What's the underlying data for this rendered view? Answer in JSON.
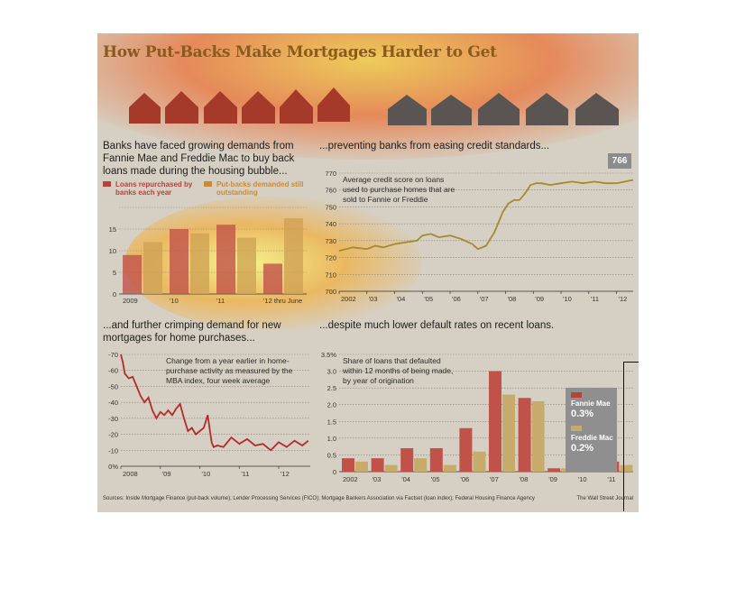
{
  "title": "How Put-Backs Make Mortgages Harder to Get",
  "panel1": {
    "title": "Banks have faced growing demands from Fannie Mae and Freddie Mac to buy back loans made during the housing bubble...",
    "legend_a": "Loans repurchased by banks each year",
    "legend_b": "Put-backs demanded still outstanding",
    "ytop": "$20 billion"
  },
  "panel2": {
    "title": "...preventing banks from easing credit standards...",
    "note": "Average credit score on loans used to purchase homes that are sold to Fannie or Freddie",
    "callout": "766"
  },
  "panel3": {
    "title": "...and further crimping demand for new mortgages for home purchases...",
    "note": "Change from a year earlier in home-purchase activity as measured by the MBA index, four week average"
  },
  "panel4": {
    "title": "...despite much lower default rates on recent loans.",
    "note": "Share of loans that defaulted within 12 months of being made, by year of origination",
    "fannie_label": "Fannie Mae",
    "fannie_value": "0.3%",
    "freddie_label": "Freddie Mac",
    "freddie_value": "0.2%"
  },
  "sources": "Sources: Inside Mortgage Finance (put-back volume); Lender Processing Services (FICO); Mortgage Bankers Association via Factset (loan index); Federal Housing Finance Agency",
  "credit": "The Wall Street Journal",
  "colors": {
    "red": "#b5433a",
    "gold": "#b89a55",
    "line_gold": "#a68a2e",
    "line_red": "#b32a2a"
  },
  "chart_data": [
    {
      "type": "bar",
      "categories": [
        "2009",
        "'10",
        "'11",
        "'12 thru June"
      ],
      "ylim": [
        0,
        20
      ],
      "yticks": [
        "0",
        "5",
        "10",
        "15",
        "$20 billion"
      ],
      "series": [
        {
          "name": "Loans repurchased by banks each year",
          "values": [
            9,
            15,
            16,
            7
          ]
        },
        {
          "name": "Put-backs demanded still outstanding",
          "values": [
            12,
            14,
            13,
            17.5
          ]
        }
      ]
    },
    {
      "type": "line",
      "xticks": [
        "2002",
        "'03",
        "'04",
        "'05",
        "'06",
        "'07",
        "'08",
        "'09",
        "'10",
        "'11",
        "'12"
      ],
      "xlim": [
        2002,
        2012.6
      ],
      "ylim": [
        700,
        770
      ],
      "yticks": [
        "700",
        "710",
        "720",
        "730",
        "740",
        "750",
        "760",
        "770"
      ],
      "x": [
        2002,
        2002.5,
        2003,
        2003.3,
        2003.6,
        2004,
        2004.4,
        2004.8,
        2005,
        2005.3,
        2005.6,
        2006,
        2006.4,
        2006.8,
        2007,
        2007.3,
        2007.6,
        2007.9,
        2008.1,
        2008.3,
        2008.5,
        2008.7,
        2008.9,
        2009.1,
        2009.3,
        2009.6,
        2010,
        2010.4,
        2010.8,
        2011.2,
        2011.6,
        2012,
        2012.3,
        2012.6
      ],
      "y": [
        724,
        726,
        725,
        727,
        726,
        728,
        729,
        730,
        733,
        734,
        732,
        733,
        731,
        728,
        725,
        727,
        735,
        747,
        752,
        754,
        754,
        758,
        763,
        764,
        764,
        763,
        764,
        765,
        764,
        765,
        764,
        764,
        765,
        766
      ]
    },
    {
      "type": "line",
      "xticks": [
        "2008",
        "'09",
        "'10",
        "'11",
        "'12"
      ],
      "xlim": [
        2008,
        2012.8
      ],
      "ylim": [
        -70,
        0
      ],
      "yticks": [
        "0%",
        "-10",
        "-20",
        "-30",
        "-40",
        "-50",
        "-60",
        "-70"
      ],
      "x": [
        2008,
        2008.05,
        2008.1,
        2008.2,
        2008.3,
        2008.4,
        2008.5,
        2008.6,
        2008.7,
        2008.8,
        2008.9,
        2009,
        2009.1,
        2009.2,
        2009.3,
        2009.4,
        2009.5,
        2009.6,
        2009.7,
        2009.8,
        2009.9,
        2010,
        2010.1,
        2010.2,
        2010.3,
        2010.35,
        2010.45,
        2010.6,
        2010.8,
        2011,
        2011.2,
        2011.4,
        2011.6,
        2011.8,
        2012,
        2012.2,
        2012.4,
        2012.6,
        2012.75
      ],
      "y": [
        0,
        -5,
        -12,
        -15,
        -14,
        -20,
        -26,
        -30,
        -27,
        -35,
        -40,
        -36,
        -38,
        -35,
        -38,
        -34,
        -31,
        -40,
        -48,
        -46,
        -50,
        -48,
        -46,
        -38,
        -55,
        -58,
        -57,
        -58,
        -52,
        -56,
        -53,
        -57,
        -56,
        -60,
        -55,
        -58,
        -54,
        -57,
        -54
      ]
    },
    {
      "type": "bar",
      "categories": [
        "2002",
        "'03",
        "'04",
        "'05",
        "'06",
        "'07",
        "'08",
        "'09",
        "'10",
        "'11"
      ],
      "ylim": [
        0,
        3.5
      ],
      "yticks": [
        "0",
        "0.5",
        "1.0",
        "1.5",
        "2.0",
        "2.5",
        "3.0",
        "3.5%"
      ],
      "series": [
        {
          "name": "Fannie Mae",
          "values": [
            0.4,
            0.4,
            0.7,
            0.7,
            1.3,
            3.0,
            2.2,
            0.1,
            0.2,
            0.3
          ]
        },
        {
          "name": "Freddie Mac",
          "values": [
            0.3,
            0.2,
            0.4,
            0.2,
            0.6,
            2.3,
            2.1,
            0.1,
            0.1,
            0.2
          ]
        }
      ]
    }
  ]
}
